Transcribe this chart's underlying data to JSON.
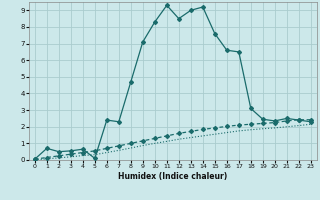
{
  "title": "",
  "xlabel": "Humidex (Indice chaleur)",
  "bg_color": "#cce8ea",
  "grid_color": "#aaccce",
  "line_color": "#1a6b6b",
  "xlim": [
    -0.5,
    23.5
  ],
  "ylim": [
    0,
    9.5
  ],
  "xticks": [
    0,
    1,
    2,
    3,
    4,
    5,
    6,
    7,
    8,
    9,
    10,
    11,
    12,
    13,
    14,
    15,
    16,
    17,
    18,
    19,
    20,
    21,
    22,
    23
  ],
  "yticks": [
    0,
    1,
    2,
    3,
    4,
    5,
    6,
    7,
    8,
    9
  ],
  "line1_x": [
    0,
    1,
    2,
    3,
    4,
    5,
    6,
    7,
    8,
    9,
    10,
    11,
    12,
    13,
    14,
    15,
    16,
    17,
    18,
    19,
    20,
    21,
    22,
    23
  ],
  "line1_y": [
    0.05,
    0.7,
    0.5,
    0.55,
    0.65,
    0.1,
    2.4,
    2.3,
    4.7,
    7.1,
    8.3,
    9.3,
    8.5,
    9.0,
    9.2,
    7.6,
    6.6,
    6.5,
    3.1,
    2.45,
    2.35,
    2.5,
    2.4,
    2.3
  ],
  "line2_x": [
    0,
    1,
    2,
    3,
    4,
    5,
    6,
    7,
    8,
    9,
    10,
    11,
    12,
    13,
    14,
    15,
    16,
    17,
    18,
    19,
    20,
    21,
    22,
    23
  ],
  "line2_y": [
    0.05,
    0.15,
    0.25,
    0.35,
    0.45,
    0.55,
    0.7,
    0.85,
    1.0,
    1.15,
    1.3,
    1.45,
    1.6,
    1.72,
    1.84,
    1.93,
    2.02,
    2.1,
    2.15,
    2.2,
    2.25,
    2.35,
    2.42,
    2.42
  ],
  "line3_x": [
    0,
    1,
    2,
    3,
    4,
    5,
    6,
    7,
    8,
    9,
    10,
    11,
    12,
    13,
    14,
    15,
    16,
    17,
    18,
    19,
    20,
    21,
    22,
    23
  ],
  "line3_y": [
    0.0,
    0.07,
    0.13,
    0.19,
    0.27,
    0.32,
    0.45,
    0.58,
    0.72,
    0.87,
    1.0,
    1.12,
    1.25,
    1.35,
    1.45,
    1.55,
    1.65,
    1.75,
    1.82,
    1.88,
    1.93,
    2.0,
    2.07,
    2.15
  ]
}
